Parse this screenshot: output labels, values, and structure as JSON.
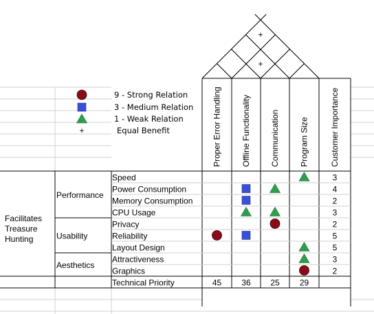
{
  "colors": {
    "strong": "#8b0a1a",
    "medium": "#3a4fd8",
    "weak": "#2f9e4c",
    "line": "#000000",
    "grid": "#d0d0d0"
  },
  "legend": [
    {
      "symbol": "strong-circle-icon",
      "label": "9 - Strong Relation"
    },
    {
      "symbol": "medium-square-icon",
      "label": "3 - Medium Relation"
    },
    {
      "symbol": "weak-triangle-icon",
      "label": "1 - Weak Relation"
    },
    {
      "symbol": "plus-icon",
      "label": "Equal Benefit"
    }
  ],
  "legend_plus_glyph": "+",
  "roof_plus_glyph": "+",
  "roof_positive_pairs": [
    [
      0,
      3
    ],
    [
      1,
      2
    ]
  ],
  "columns": [
    "Proper Error Handling",
    "Offline Functionality",
    "Communication",
    "Program Size"
  ],
  "importance_header": "Customer Importance",
  "category": "Facilitates\nTreasure\nHunting",
  "groups": [
    {
      "label": "Performance",
      "rows": [
        0,
        3
      ]
    },
    {
      "label": "Usability",
      "rows": [
        4,
        6
      ]
    },
    {
      "label": "Aesthetics",
      "rows": [
        7,
        8
      ]
    }
  ],
  "rows": [
    {
      "label": "Speed",
      "importance": "3",
      "relations": [
        "",
        "",
        "",
        "weak"
      ]
    },
    {
      "label": "Power Consumption",
      "importance": "4",
      "relations": [
        "",
        "medium",
        "weak",
        ""
      ]
    },
    {
      "label": "Memory Consumption",
      "importance": "2",
      "relations": [
        "",
        "medium",
        "",
        ""
      ]
    },
    {
      "label": "CPU Usage",
      "importance": "3",
      "relations": [
        "",
        "weak",
        "weak",
        ""
      ]
    },
    {
      "label": "Privacy",
      "importance": "2",
      "relations": [
        "",
        "",
        "strong",
        ""
      ]
    },
    {
      "label": "Reliability",
      "importance": "5",
      "relations": [
        "strong",
        "medium",
        "",
        ""
      ]
    },
    {
      "label": "Layout Design",
      "importance": "5",
      "relations": [
        "",
        "",
        "",
        "weak"
      ]
    },
    {
      "label": "Attractiveness",
      "importance": "3",
      "relations": [
        "",
        "",
        "",
        "weak"
      ]
    },
    {
      "label": "Graphics",
      "importance": "2",
      "relations": [
        "",
        "",
        "",
        "strong"
      ]
    }
  ],
  "technical_priority": {
    "label": "Technical Priority",
    "values": [
      "45",
      "36",
      "25",
      "29"
    ]
  }
}
